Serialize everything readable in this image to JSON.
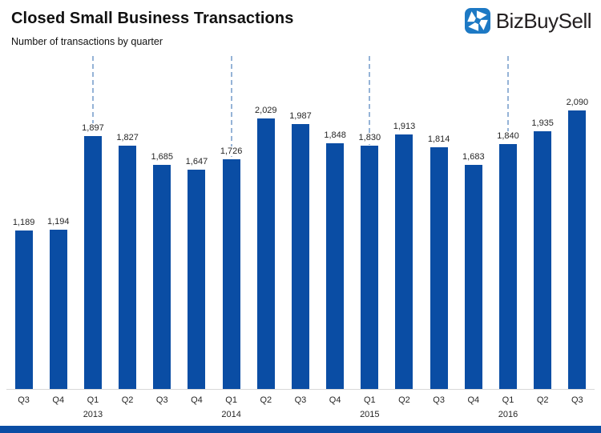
{
  "header": {
    "title": "Closed Small Business Transactions",
    "subtitle": "Number of transactions by quarter"
  },
  "logo": {
    "text": "BizBuySell",
    "icon": "pinwheel-icon",
    "icon_color": "#1d79c4"
  },
  "colors": {
    "bar": "#0a4da4",
    "dash_line": "#95b3d7",
    "footer_strip": "#0a4da4",
    "axis_line": "#d9d9d9",
    "text": "#262626"
  },
  "chart_data": {
    "type": "bar",
    "title": "Closed Small Business Transactions",
    "subtitle": "Number of transactions by quarter",
    "xlabel": "",
    "ylabel": "",
    "ylim": [
      0,
      2500
    ],
    "grid": false,
    "legend": "none",
    "categories": [
      "Q3",
      "Q4",
      "Q1",
      "Q2",
      "Q3",
      "Q4",
      "Q1",
      "Q2",
      "Q3",
      "Q4",
      "Q1",
      "Q2",
      "Q3",
      "Q4",
      "Q1",
      "Q2",
      "Q3"
    ],
    "values": [
      1189,
      1194,
      1897,
      1827,
      1685,
      1647,
      1726,
      2029,
      1987,
      1848,
      1830,
      1913,
      1814,
      1683,
      1840,
      1935,
      2090
    ],
    "value_labels": [
      "1,189",
      "1,194",
      "1,897",
      "1,827",
      "1,685",
      "1,647",
      "1,726",
      "2,029",
      "1,987",
      "1,848",
      "1,830",
      "1,913",
      "1,814",
      "1,683",
      "1,840",
      "1,935",
      "2,090"
    ],
    "year_markers": [
      {
        "index": 2,
        "year": "2013"
      },
      {
        "index": 6,
        "year": "2014"
      },
      {
        "index": 10,
        "year": "2015"
      },
      {
        "index": 14,
        "year": "2016"
      }
    ]
  }
}
